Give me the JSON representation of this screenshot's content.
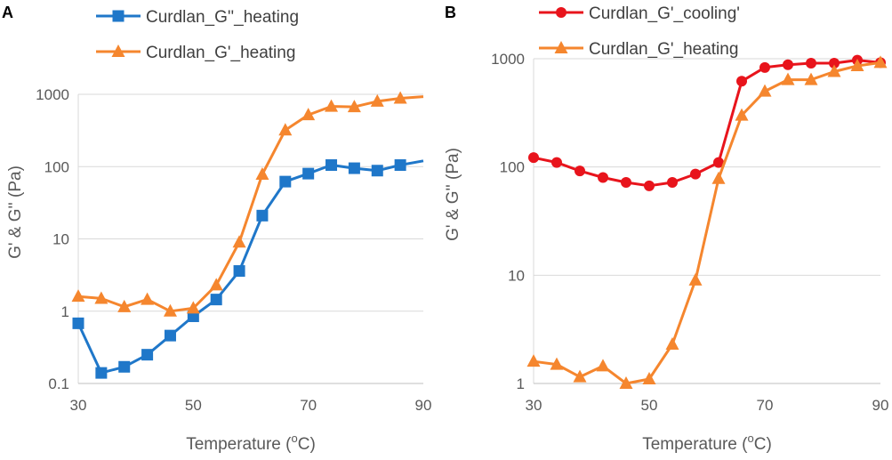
{
  "chart_data": [
    {
      "panel": "A",
      "type": "line",
      "y_scale": "log",
      "xlabel": "Temperature (",
      "xlabel_unit_sup": "o",
      "xlabel_unit": "C)",
      "ylabel": "G' & G'' (Pa)",
      "xlim": [
        30,
        90
      ],
      "ylim": [
        0.1,
        1000
      ],
      "xticks": [
        30,
        50,
        70,
        90
      ],
      "yticks": [
        0.1,
        1,
        10,
        100,
        1000
      ],
      "ytick_labels": [
        "0.1",
        "1",
        "10",
        "100",
        "1000"
      ],
      "grid": true,
      "legend_position": "top",
      "series": [
        {
          "name": "Curdlan_G''_heating",
          "color": "#1f77c9",
          "marker": "square",
          "x": [
            30,
            34,
            38,
            42,
            46,
            50,
            54,
            58,
            62,
            66,
            70,
            74,
            78,
            82,
            86,
            90
          ],
          "values": [
            0.68,
            0.14,
            0.17,
            0.25,
            0.46,
            0.85,
            1.45,
            3.6,
            21,
            62,
            80,
            105,
            95,
            88,
            105,
            120
          ]
        },
        {
          "name": "Curdlan_G'_heating",
          "color": "#f5862e",
          "marker": "triangle",
          "x": [
            30,
            34,
            38,
            42,
            46,
            50,
            54,
            58,
            62,
            66,
            70,
            74,
            78,
            82,
            86,
            90
          ],
          "values": [
            1.6,
            1.5,
            1.15,
            1.45,
            1.0,
            1.1,
            2.3,
            9,
            78,
            320,
            520,
            680,
            670,
            800,
            880,
            930
          ]
        }
      ]
    },
    {
      "panel": "B",
      "type": "line",
      "y_scale": "log",
      "xlabel": "Temperature (",
      "xlabel_unit_sup": "o",
      "xlabel_unit": "C)",
      "ylabel": "G' & G'' (Pa)",
      "xlim": [
        30,
        90
      ],
      "ylim": [
        1,
        1000
      ],
      "xticks": [
        30,
        50,
        70,
        90
      ],
      "yticks": [
        1,
        10,
        100,
        1000
      ],
      "ytick_labels": [
        "1",
        "10",
        "100",
        "1000"
      ],
      "grid": true,
      "legend_position": "top",
      "series": [
        {
          "name": "Curdlan_G'_cooling'",
          "color": "#e8141c",
          "marker": "circle",
          "x": [
            30,
            34,
            38,
            42,
            46,
            50,
            54,
            58,
            62,
            66,
            70,
            74,
            78,
            82,
            86,
            90
          ],
          "values": [
            122,
            110,
            92,
            80,
            72,
            67,
            72,
            86,
            110,
            620,
            830,
            880,
            910,
            910,
            970,
            920
          ]
        },
        {
          "name": "Curdlan_G'_heating",
          "color": "#f5862e",
          "marker": "triangle",
          "x": [
            30,
            34,
            38,
            42,
            46,
            50,
            54,
            58,
            62,
            66,
            70,
            74,
            78,
            82,
            86,
            90
          ],
          "values": [
            1.6,
            1.5,
            1.15,
            1.45,
            1.0,
            1.1,
            2.3,
            9,
            78,
            300,
            500,
            640,
            640,
            760,
            860,
            920
          ]
        }
      ]
    }
  ]
}
